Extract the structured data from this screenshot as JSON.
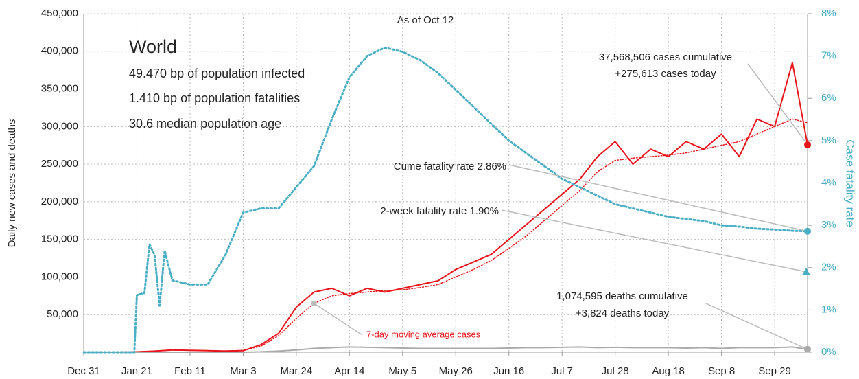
{
  "chart_data": {
    "type": "line",
    "title": "World",
    "subtitle": "As of Oct 12",
    "info": [
      "49.470 bp of population infected",
      "1.410 bp of population fatalities",
      "30.6 median population age"
    ],
    "ylabel": "Daily new cases and deaths",
    "y2label": "Case fatality rate",
    "xlim": [
      0,
      286
    ],
    "xticks": [
      {
        "value": 0,
        "label": "Dec 31"
      },
      {
        "value": 21,
        "label": "Jan 21"
      },
      {
        "value": 42,
        "label": "Feb 11"
      },
      {
        "value": 63,
        "label": "Mar 3"
      },
      {
        "value": 84,
        "label": "Mar 24"
      },
      {
        "value": 105,
        "label": "Apr 14"
      },
      {
        "value": 126,
        "label": "May 5"
      },
      {
        "value": 147,
        "label": "May 26"
      },
      {
        "value": 168,
        "label": "Jun 16"
      },
      {
        "value": 189,
        "label": "Jul 7"
      },
      {
        "value": 210,
        "label": "Jul 28"
      },
      {
        "value": 231,
        "label": "Aug 18"
      },
      {
        "value": 252,
        "label": "Sep 8"
      },
      {
        "value": 273,
        "label": "Sep 29"
      }
    ],
    "ylim": [
      0,
      450000
    ],
    "yticks": [
      {
        "value": 50000,
        "label": "50,000"
      },
      {
        "value": 100000,
        "label": "100,000"
      },
      {
        "value": 150000,
        "label": "150,000"
      },
      {
        "value": 200000,
        "label": "200,000"
      },
      {
        "value": 250000,
        "label": "250,000"
      },
      {
        "value": 300000,
        "label": "300,000"
      },
      {
        "value": 350000,
        "label": "350,000"
      },
      {
        "value": 400000,
        "label": "400,000"
      },
      {
        "value": 450000,
        "label": "450,000"
      }
    ],
    "y2lim": [
      0,
      8
    ],
    "y2ticks": [
      {
        "value": 0,
        "label": "0%"
      },
      {
        "value": 1,
        "label": "1%"
      },
      {
        "value": 2,
        "label": "2%"
      },
      {
        "value": 3,
        "label": "3%"
      },
      {
        "value": 4,
        "label": "4%"
      },
      {
        "value": 5,
        "label": "5%"
      },
      {
        "value": 6,
        "label": "6%"
      },
      {
        "value": 7,
        "label": "7%"
      },
      {
        "value": 8,
        "label": "8%"
      }
    ],
    "grid": true,
    "series": [
      {
        "color": "#e8141c",
        "style": "solid",
        "x": [
          0,
          7,
          14,
          21,
          28,
          35,
          42,
          49,
          56,
          63,
          70,
          77,
          84,
          91,
          98,
          105,
          112,
          119,
          126,
          133,
          140,
          147,
          154,
          161,
          168,
          175,
          182,
          189,
          196,
          203,
          210,
          217,
          224,
          231,
          238,
          245,
          252,
          259,
          266,
          273,
          280,
          286
        ],
        "values": [
          0,
          0,
          0,
          500,
          1500,
          3000,
          2500,
          2000,
          1500,
          2000,
          10000,
          25000,
          60000,
          80000,
          85000,
          75000,
          85000,
          80000,
          85000,
          90000,
          95000,
          110000,
          120000,
          130000,
          150000,
          170000,
          190000,
          210000,
          230000,
          260000,
          280000,
          250000,
          270000,
          260000,
          280000,
          270000,
          290000,
          260000,
          310000,
          300000,
          385000,
          275613
        ]
      },
      {
        "name": "7-day moving average cases",
        "color": "#e8141c",
        "style": "dotted",
        "x": [
          0,
          7,
          14,
          21,
          28,
          35,
          42,
          49,
          56,
          63,
          70,
          77,
          84,
          91,
          98,
          105,
          112,
          119,
          126,
          133,
          140,
          147,
          154,
          161,
          168,
          175,
          182,
          189,
          196,
          203,
          210,
          217,
          224,
          231,
          238,
          245,
          252,
          259,
          266,
          273,
          280,
          286
        ],
        "values": [
          0,
          0,
          0,
          500,
          1500,
          2500,
          2500,
          2000,
          1700,
          2500,
          8000,
          22000,
          45000,
          65000,
          75000,
          78000,
          80000,
          82000,
          83000,
          86000,
          90000,
          100000,
          110000,
          122000,
          138000,
          155000,
          175000,
          195000,
          215000,
          240000,
          255000,
          258000,
          260000,
          262000,
          265000,
          270000,
          275000,
          280000,
          290000,
          300000,
          310000,
          305000
        ]
      },
      {
        "color": "#aaaaaa",
        "style": "solid",
        "x": [
          0,
          7,
          14,
          21,
          28,
          35,
          42,
          49,
          56,
          63,
          70,
          77,
          84,
          91,
          98,
          105,
          112,
          119,
          126,
          133,
          140,
          147,
          154,
          161,
          168,
          175,
          182,
          189,
          196,
          203,
          210,
          217,
          224,
          231,
          238,
          245,
          252,
          259,
          266,
          273,
          280,
          286
        ],
        "values": [
          0,
          0,
          0,
          0,
          0,
          0,
          0,
          0,
          0,
          0,
          500,
          1500,
          3000,
          5000,
          6000,
          7000,
          6500,
          6000,
          5500,
          5000,
          5000,
          5000,
          5000,
          5000,
          5500,
          6000,
          6000,
          6500,
          7000,
          6000,
          6500,
          6000,
          6000,
          6000,
          5500,
          6000,
          5000,
          6000,
          6000,
          6000,
          7000,
          3824
        ]
      },
      {
        "color": "#4aaec4",
        "style": "dotted",
        "axis": "y2",
        "x": [
          0,
          10,
          20,
          21,
          24,
          26,
          28,
          30,
          32,
          35,
          42,
          49,
          56,
          63,
          70,
          77,
          84,
          91,
          98,
          105,
          112,
          119,
          126,
          133,
          140,
          147,
          154,
          161,
          168,
          175,
          182,
          189,
          196,
          203,
          210,
          217,
          224,
          231,
          238,
          245,
          252,
          259,
          266,
          273,
          280,
          286
        ],
        "values": [
          0,
          0,
          0,
          1.35,
          1.4,
          2.55,
          2.3,
          1.1,
          2.4,
          1.7,
          1.6,
          1.6,
          2.3,
          3.3,
          3.4,
          3.4,
          3.9,
          4.4,
          5.5,
          6.5,
          7.0,
          7.2,
          7.1,
          6.9,
          6.6,
          6.2,
          5.8,
          5.4,
          5.0,
          4.7,
          4.4,
          4.1,
          3.9,
          3.7,
          3.5,
          3.4,
          3.3,
          3.2,
          3.15,
          3.1,
          3.0,
          2.97,
          2.92,
          2.9,
          2.87,
          2.86
        ]
      }
    ],
    "annotations": [
      {
        "lines": [
          "37,568,506 cases cumulative",
          "+275,613 cases today"
        ]
      },
      {
        "text": "Cume fatality rate 2.86%"
      },
      {
        "text": "2-week fatality rate 1.90%",
        "value": 1.9
      },
      {
        "lines": [
          "1,074,595 deaths cumulative",
          "+3,824 deaths today"
        ]
      }
    ]
  }
}
